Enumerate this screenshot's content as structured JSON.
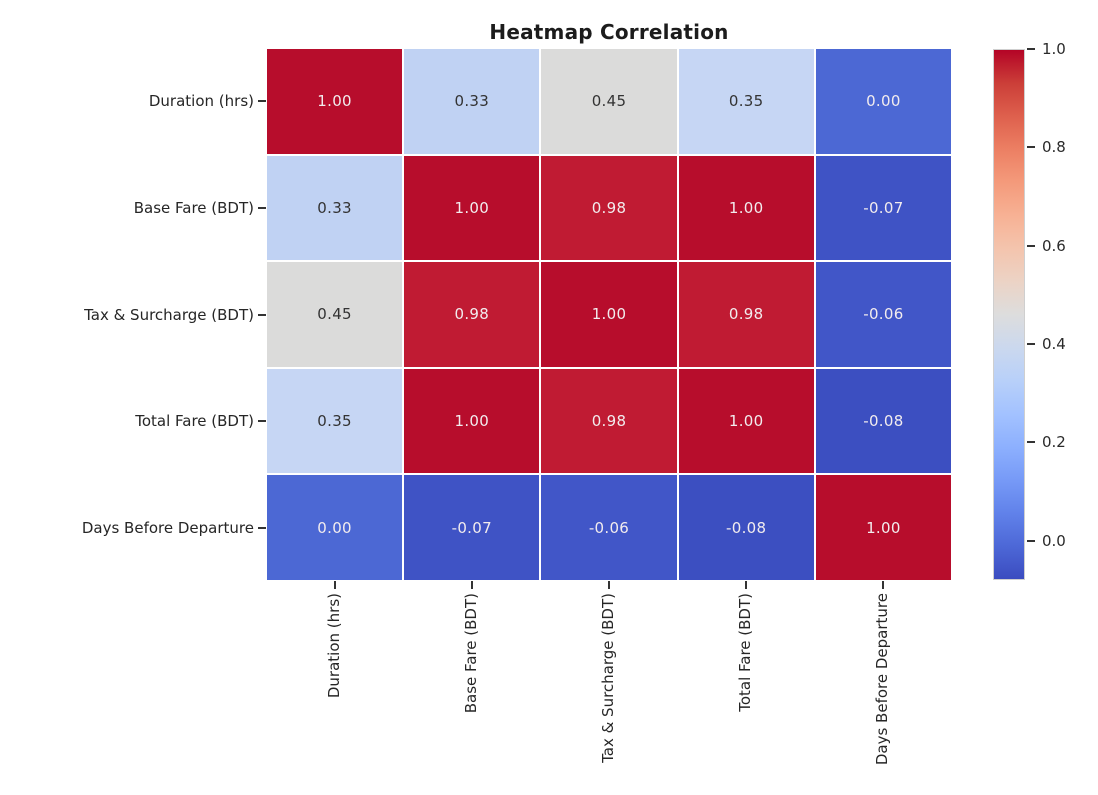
{
  "chart_data": {
    "type": "heatmap",
    "title": "Heatmap Correlation",
    "labels": [
      "Duration (hrs)",
      "Base Fare (BDT)",
      "Tax & Surcharge (BDT)",
      "Total Fare (BDT)",
      "Days Before Departure"
    ],
    "matrix": [
      [
        1.0,
        0.33,
        0.45,
        0.35,
        0.0
      ],
      [
        0.33,
        1.0,
        0.98,
        1.0,
        -0.07
      ],
      [
        0.45,
        0.98,
        1.0,
        0.98,
        -0.06
      ],
      [
        0.35,
        1.0,
        0.98,
        1.0,
        -0.08
      ],
      [
        0.0,
        -0.07,
        -0.06,
        -0.08,
        1.0
      ]
    ],
    "annotated": true,
    "value_format": "two_decimals",
    "colormap": "coolwarm",
    "vmin": -0.08,
    "vmax": 1.0,
    "colorbar_ticks": [
      1.0,
      0.8,
      0.6,
      0.4,
      0.2,
      0.0
    ],
    "legend_position": "right",
    "grid": false
  },
  "colors": {
    "value_colors": {
      "1.00": "#b70d2c",
      "0.98": "#c01b33",
      "0.45": "#dbdbda",
      "0.35": "#c6d6f4",
      "0.33": "#c0d2f3",
      "0.00": "#4c68d4",
      "-0.06": "#4156c8",
      "-0.07": "#3f53c5",
      "-0.08": "#3c4fc1"
    },
    "annot_on_dark": "#f2ecee",
    "annot_on_light": "#333333",
    "tick_color": "#333333",
    "axis_label_color": "#262626",
    "title_color": "#1c1c1c"
  }
}
